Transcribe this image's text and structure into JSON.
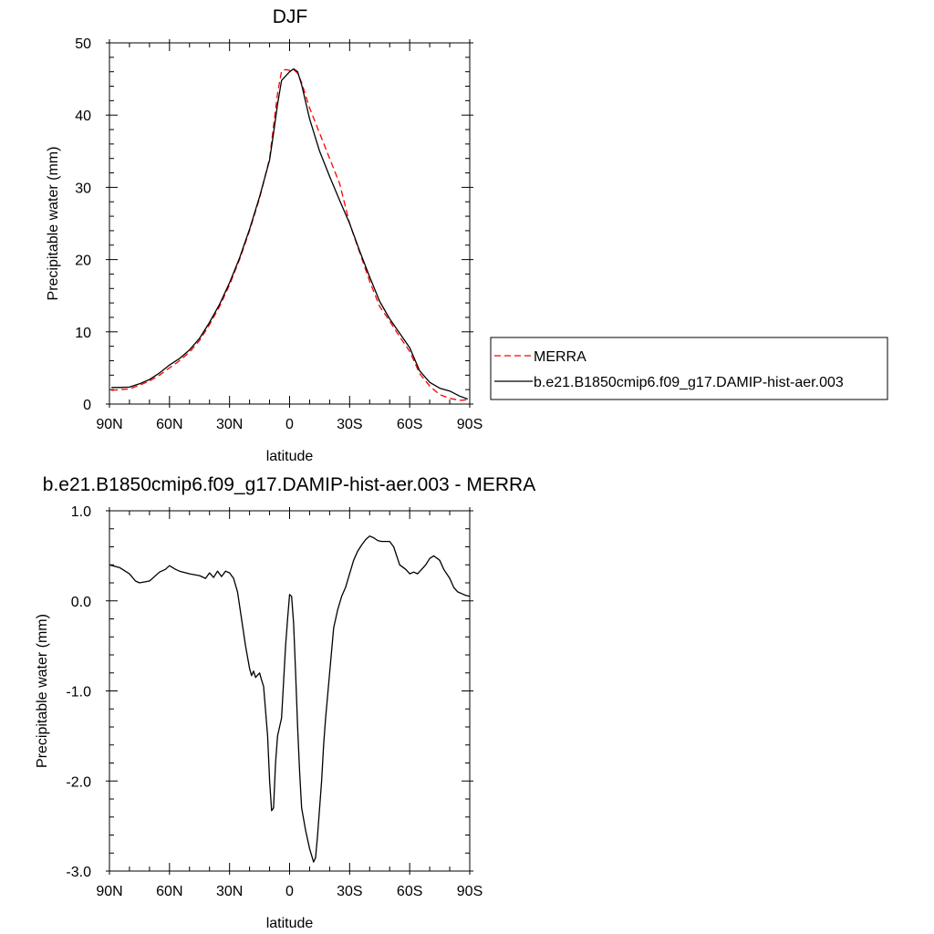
{
  "chart_data": [
    {
      "type": "line",
      "title": "DJF",
      "xlabel": "latitude",
      "ylabel": "Precipitable water (mm)",
      "ylim": [
        0,
        50
      ],
      "xlim": [
        90,
        -90
      ],
      "x_ticks": [
        90,
        60,
        30,
        0,
        -30,
        -60,
        -90
      ],
      "x_tick_labels": [
        "90N",
        "60N",
        "30N",
        "0",
        "30S",
        "60S",
        "90S"
      ],
      "y_ticks": [
        0,
        10,
        20,
        30,
        40,
        50
      ],
      "y_tick_labels": [
        "0",
        "10",
        "20",
        "30",
        "40",
        "50"
      ],
      "legend_position": "right",
      "series": [
        {
          "name": "MERRA",
          "color": "#ff0000",
          "style": "dashed",
          "x": [
            89,
            85,
            80,
            75,
            70,
            65,
            60,
            55,
            50,
            45,
            40,
            35,
            30,
            25,
            20,
            15,
            10,
            8,
            6,
            4,
            2,
            0,
            -2,
            -4,
            -6,
            -10,
            -15,
            -20,
            -25,
            -30,
            -35,
            -40,
            -45,
            -50,
            -55,
            -60,
            -65,
            -70,
            -75,
            -80,
            -85,
            -89
          ],
          "y": [
            1.9,
            2.0,
            2.1,
            2.6,
            3.2,
            4.0,
            5.0,
            6.0,
            7.2,
            8.8,
            11.0,
            13.5,
            16.5,
            20.0,
            24.0,
            28.5,
            34.0,
            38.5,
            43.0,
            46.1,
            46.3,
            46.2,
            46.3,
            45.8,
            44.5,
            41.0,
            37.5,
            34.0,
            30.5,
            25.0,
            21.0,
            17.0,
            13.5,
            11.5,
            9.3,
            7.3,
            4.2,
            2.5,
            1.3,
            0.8,
            0.5,
            0.6
          ]
        },
        {
          "name": "b.e21.B1850cmip6.f09_g17.DAMIP-hist-aer.003",
          "color": "#000000",
          "style": "solid",
          "x": [
            89,
            85,
            80,
            75,
            70,
            65,
            60,
            55,
            50,
            45,
            40,
            35,
            30,
            25,
            20,
            15,
            10,
            8,
            6,
            4,
            2,
            0,
            -2,
            -4,
            -6,
            -10,
            -15,
            -20,
            -25,
            -30,
            -35,
            -40,
            -45,
            -50,
            -55,
            -60,
            -65,
            -70,
            -75,
            -80,
            -85,
            -89
          ],
          "y": [
            2.3,
            2.3,
            2.35,
            2.8,
            3.4,
            4.3,
            5.4,
            6.3,
            7.5,
            9.1,
            11.3,
            13.8,
            16.8,
            20.2,
            24.2,
            28.7,
            33.8,
            37.5,
            41.5,
            44.8,
            45.4,
            46.0,
            46.4,
            46.0,
            44.2,
            39.5,
            35.0,
            31.5,
            28.2,
            25.0,
            21.2,
            17.6,
            14.2,
            11.8,
            9.8,
            7.8,
            4.6,
            3.0,
            2.2,
            1.8,
            1.1,
            0.7
          ]
        }
      ]
    },
    {
      "type": "line",
      "title": "b.e21.B1850cmip6.f09_g17.DAMIP-hist-aer.003 - MERRA",
      "xlabel": "latitude",
      "ylabel": "Precipitable water (mm)",
      "ylim": [
        -3.0,
        1.0
      ],
      "xlim": [
        90,
        -90
      ],
      "x_ticks": [
        90,
        60,
        30,
        0,
        -30,
        -60,
        -90
      ],
      "x_tick_labels": [
        "90N",
        "60N",
        "30N",
        "0",
        "30S",
        "60S",
        "90S"
      ],
      "y_ticks": [
        -3.0,
        -2.0,
        -1.0,
        0.0,
        1.0
      ],
      "y_tick_labels": [
        "-3.0",
        "-2.0",
        "-1.0",
        "0.0",
        "1.0"
      ],
      "series": [
        {
          "color": "#000000",
          "style": "solid",
          "x": [
            90,
            85,
            80,
            77,
            75,
            70,
            65,
            62,
            60,
            57,
            55,
            50,
            45,
            42,
            40,
            38,
            36,
            34,
            32,
            30,
            28,
            26,
            24,
            22,
            20,
            19,
            18,
            17,
            15,
            14,
            13,
            11,
            10,
            9,
            8,
            7,
            6,
            5,
            4,
            3,
            2,
            1,
            0,
            -1,
            -2,
            -3,
            -4,
            -5,
            -6,
            -8,
            -10,
            -12,
            -13,
            -14,
            -15,
            -16,
            -17,
            -18,
            -20,
            -22,
            -24,
            -26,
            -28,
            -30,
            -32,
            -34,
            -36,
            -38,
            -40,
            -42,
            -44,
            -46,
            -48,
            -50,
            -52,
            -55,
            -58,
            -60,
            -62,
            -64,
            -66,
            -68,
            -70,
            -72,
            -75,
            -77,
            -80,
            -82,
            -84,
            -86,
            -88,
            -90
          ],
          "y": [
            0.4,
            0.37,
            0.3,
            0.22,
            0.2,
            0.22,
            0.32,
            0.35,
            0.39,
            0.35,
            0.33,
            0.3,
            0.28,
            0.25,
            0.31,
            0.26,
            0.33,
            0.27,
            0.33,
            0.31,
            0.25,
            0.1,
            -0.2,
            -0.5,
            -0.75,
            -0.83,
            -0.78,
            -0.85,
            -0.8,
            -0.88,
            -0.95,
            -1.5,
            -2.0,
            -2.33,
            -2.3,
            -1.8,
            -1.5,
            -1.4,
            -1.3,
            -0.9,
            -0.5,
            -0.2,
            0.07,
            0.05,
            -0.25,
            -0.8,
            -1.4,
            -1.9,
            -2.3,
            -2.55,
            -2.75,
            -2.9,
            -2.85,
            -2.6,
            -2.3,
            -2.0,
            -1.6,
            -1.3,
            -0.8,
            -0.3,
            -0.1,
            0.05,
            0.15,
            0.3,
            0.45,
            0.55,
            0.62,
            0.68,
            0.72,
            0.7,
            0.67,
            0.66,
            0.66,
            0.66,
            0.6,
            0.4,
            0.35,
            0.3,
            0.32,
            0.3,
            0.35,
            0.4,
            0.47,
            0.5,
            0.45,
            0.35,
            0.25,
            0.15,
            0.1,
            0.08,
            0.06,
            0.05
          ]
        }
      ]
    }
  ]
}
